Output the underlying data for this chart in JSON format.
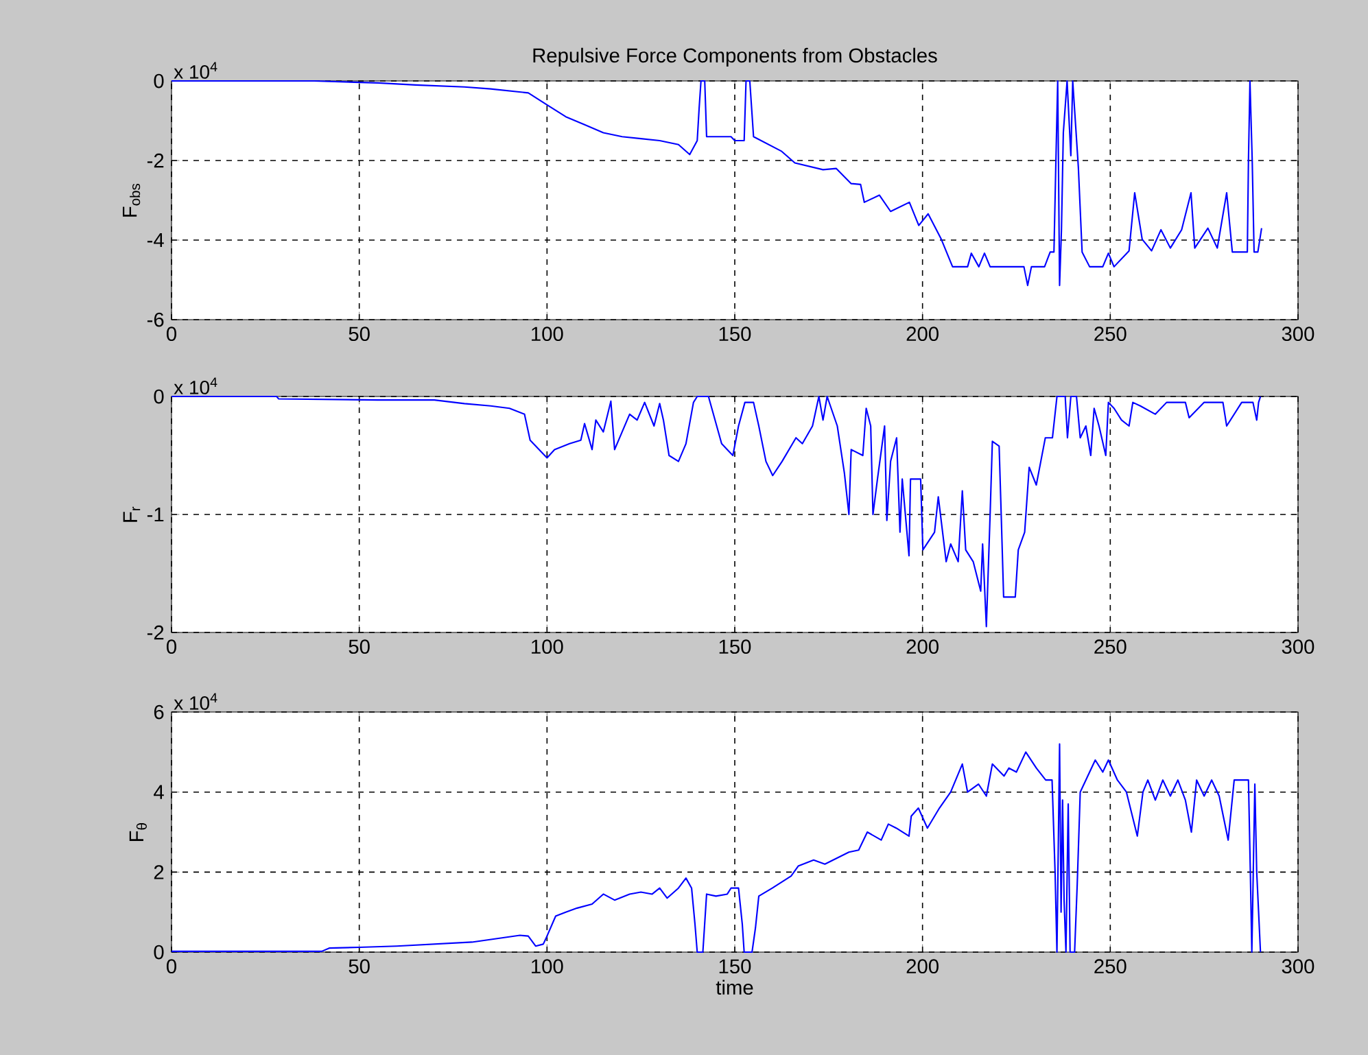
{
  "chart_data": [
    {
      "type": "line",
      "title": "Repulsive Force Components from Obstacles",
      "ylabel": "F$_{obs}$",
      "annotations": [
        "x 10$^{4}$"
      ],
      "color": "#0000ff",
      "grid": true,
      "tick_labels": true,
      "x": [
        0,
        38,
        55,
        65,
        78,
        85,
        95,
        100,
        105,
        110,
        115,
        120,
        125,
        130,
        135,
        138,
        140,
        140.5,
        141,
        142,
        142.5,
        149,
        150,
        152.5,
        153,
        154,
        155,
        162.5,
        166,
        173.5,
        177,
        181,
        183.5,
        184.5,
        188.5,
        191.5,
        196.5,
        199,
        201.5,
        205,
        208,
        212,
        213,
        215,
        216.5,
        218,
        227,
        228,
        229,
        232.5,
        234,
        235,
        235.5,
        236,
        236.5,
        237,
        237.5,
        238.5,
        239.5,
        240,
        241.5,
        242.5,
        244.5,
        248,
        249.5,
        251,
        255,
        256.5,
        258.5,
        261,
        263.5,
        266,
        269,
        271.5,
        272.5,
        276,
        278.5,
        281,
        282.5,
        286.5,
        286.8,
        287.2,
        287.8,
        288.3,
        289.3,
        290.3
      ],
      "values": [
        0,
        0,
        -0.05,
        -0.1,
        -0.15,
        -0.2,
        -0.3,
        -0.6,
        -0.9,
        -1.1,
        -1.3,
        -1.4,
        -1.45,
        -1.5,
        -1.6,
        -1.85,
        -1.5,
        -0.7,
        0,
        0,
        -1.4,
        -1.4,
        -1.5,
        -1.5,
        0,
        0,
        -1.4,
        -1.77,
        -2.06,
        -2.23,
        -2.2,
        -2.58,
        -2.6,
        -3.05,
        -2.87,
        -3.28,
        -3.05,
        -3.63,
        -3.34,
        -3.98,
        -4.67,
        -4.67,
        -4.33,
        -4.67,
        -4.33,
        -4.67,
        -4.67,
        -5.14,
        -4.67,
        -4.67,
        -4.3,
        -4.3,
        -2.1,
        0,
        -5.14,
        -3.74,
        -1.3,
        0,
        -1.88,
        0,
        -2.17,
        -4.3,
        -4.67,
        -4.67,
        -4.33,
        -4.67,
        -4.27,
        -2.81,
        -3.98,
        -4.27,
        -3.74,
        -4.2,
        -3.74,
        -2.81,
        -4.2,
        -3.7,
        -4.2,
        -2.81,
        -4.3,
        -4.3,
        -2,
        0,
        -2,
        -4.3,
        -4.3,
        -3.7
      ],
      "xlim": [
        0,
        300
      ],
      "xticks": [
        0,
        50,
        100,
        150,
        200,
        250,
        300
      ],
      "ylim": [
        -6,
        0
      ],
      "yticks": [
        -6,
        -4,
        -2,
        0
      ]
    },
    {
      "type": "line",
      "ylabel": "F$_{r}$",
      "annotations": [
        "x 10$^{4}$"
      ],
      "color": "#0000ff",
      "grid": true,
      "x": [
        0,
        28,
        28.5,
        55,
        70,
        78,
        85,
        90,
        94,
        95.5,
        100,
        102,
        106,
        109,
        110,
        112,
        113,
        115,
        117,
        118,
        120,
        122,
        124,
        126,
        128.5,
        130,
        131,
        132.5,
        135,
        137,
        139,
        140,
        143,
        146.5,
        148,
        149.5,
        151,
        152.7,
        155,
        156.4,
        158.3,
        160.1,
        162.6,
        166.3,
        168,
        170.7,
        172.4,
        173.5,
        174.6,
        177.3,
        179.2,
        180.4,
        181,
        184.1,
        185,
        186.2,
        186.8,
        188,
        189.9,
        190.5,
        191.5,
        193.1,
        194,
        194.6,
        196.4,
        196.8,
        199.5,
        200.1,
        203.2,
        204.2,
        206.3,
        207.5,
        209.5,
        210.6,
        211.5,
        213.5,
        215.5,
        216,
        217,
        218,
        218.6,
        220.4,
        221,
        221.6,
        224.7,
        225.5,
        227.2,
        228.4,
        230.3,
        231.5,
        232.7,
        234.6,
        235.8,
        238,
        238.6,
        239.5,
        241,
        242,
        243.5,
        244.8,
        245.7,
        247,
        248.8,
        249.5,
        251,
        253,
        255,
        256,
        258,
        262,
        265,
        270,
        271,
        275,
        280,
        281,
        285,
        288,
        289,
        289.5,
        290
      ],
      "values": [
        0,
        0,
        -0.02,
        -0.03,
        -0.03,
        -0.06,
        -0.08,
        -0.1,
        -0.15,
        -0.37,
        -0.52,
        -0.45,
        -0.4,
        -0.37,
        -0.23,
        -0.45,
        -0.2,
        -0.3,
        -0.04,
        -0.45,
        -0.3,
        -0.15,
        -0.2,
        -0.05,
        -0.25,
        -0.06,
        -0.2,
        -0.5,
        -0.55,
        -0.4,
        -0.05,
        0,
        0,
        -0.4,
        -0.45,
        -0.5,
        -0.25,
        -0.05,
        -0.05,
        -0.25,
        -0.55,
        -0.67,
        -0.55,
        -0.35,
        -0.4,
        -0.25,
        0,
        -0.2,
        0,
        -0.25,
        -0.65,
        -1,
        -0.45,
        -0.5,
        -0.1,
        -0.25,
        -1,
        -0.7,
        -0.25,
        -1.05,
        -0.55,
        -0.35,
        -1.15,
        -0.7,
        -1.35,
        -0.7,
        -0.7,
        -1.3,
        -1.15,
        -0.85,
        -1.4,
        -1.25,
        -1.4,
        -0.8,
        -1.3,
        -1.4,
        -1.65,
        -1.25,
        -1.95,
        -1,
        -0.38,
        -0.42,
        -1.05,
        -1.7,
        -1.7,
        -1.3,
        -1.15,
        -0.6,
        -0.75,
        -0.55,
        -0.35,
        -0.35,
        0,
        0,
        -0.35,
        0,
        0,
        -0.35,
        -0.25,
        -0.5,
        -0.1,
        -0.25,
        -0.5,
        -0.05,
        -0.1,
        -0.2,
        -0.25,
        -0.05,
        -0.08,
        -0.15,
        -0.05,
        -0.05,
        -0.18,
        -0.05,
        -0.05,
        -0.25,
        -0.05,
        -0.05,
        -0.2,
        -0.05,
        0
      ],
      "xlim": [
        0,
        300
      ],
      "xticks": [
        0,
        50,
        100,
        150,
        200,
        250,
        300
      ],
      "ylim": [
        -2,
        0
      ],
      "yticks": [
        -2,
        -1,
        0
      ]
    },
    {
      "type": "line",
      "ylabel": "F$_{θ}$",
      "xlabel": "time",
      "annotations": [
        "x 10$^{4}$"
      ],
      "color": "#0000ff",
      "grid": true,
      "x": [
        0,
        40,
        42,
        50,
        60,
        70,
        80,
        92.8,
        95,
        97,
        99,
        100,
        102.3,
        105,
        108,
        112,
        115,
        118,
        122,
        125,
        128,
        130,
        132,
        135,
        137,
        138.5,
        139.4,
        140,
        141.5,
        142.5,
        145,
        148,
        149,
        151,
        152,
        152.5,
        154.6,
        155.5,
        156.4,
        160,
        165,
        166.9,
        171,
        174,
        180.4,
        183,
        185.3,
        189,
        190.9,
        193,
        196.4,
        197,
        198.9,
        201.3,
        204.5,
        207.5,
        210.6,
        212,
        214.9,
        217,
        218.6,
        221.7,
        223,
        225,
        227.5,
        230.3,
        232.8,
        234.5,
        235.3,
        235.8,
        236.5,
        236.9,
        237.3,
        237.7,
        238.2,
        238.8,
        239.3,
        240.5,
        241.2,
        242,
        244.5,
        246,
        248,
        249.5,
        251.9,
        254.3,
        257.2,
        258.7,
        260,
        262,
        264,
        266,
        268,
        270,
        271.6,
        273,
        275,
        277,
        279,
        281.4,
        283,
        286.8,
        287.3,
        287.7,
        288.5,
        289,
        290
      ],
      "values": [
        0.02,
        0.02,
        0.1,
        0.12,
        0.15,
        0.2,
        0.25,
        0.42,
        0.4,
        0.15,
        0.2,
        0.4,
        0.9,
        1,
        1.1,
        1.2,
        1.45,
        1.3,
        1.45,
        1.5,
        1.45,
        1.6,
        1.35,
        1.6,
        1.85,
        1.6,
        0.7,
        0,
        0,
        1.45,
        1.4,
        1.45,
        1.6,
        1.6,
        0.7,
        0,
        0,
        0.6,
        1.4,
        1.6,
        1.9,
        2.15,
        2.3,
        2.2,
        2.5,
        2.55,
        3,
        2.8,
        3.2,
        3.1,
        2.9,
        3.4,
        3.6,
        3.1,
        3.6,
        4,
        4.7,
        4,
        4.2,
        3.9,
        4.7,
        4.4,
        4.6,
        4.5,
        5,
        4.6,
        4.3,
        4.3,
        2,
        0,
        5.2,
        1,
        3.8,
        1.3,
        0,
        3.7,
        0,
        0,
        1.7,
        4,
        4.5,
        4.8,
        4.5,
        4.8,
        4.3,
        4,
        2.9,
        4,
        4.3,
        3.8,
        4.3,
        3.9,
        4.3,
        3.8,
        3,
        4.3,
        3.9,
        4.3,
        3.9,
        2.8,
        4.3,
        4.3,
        2,
        0,
        4.2,
        2,
        0
      ],
      "xlim": [
        0,
        300
      ],
      "xticks": [
        0,
        50,
        100,
        150,
        200,
        250,
        300
      ],
      "ylim": [
        0,
        6
      ],
      "yticks": [
        0,
        2,
        4,
        6
      ]
    }
  ]
}
